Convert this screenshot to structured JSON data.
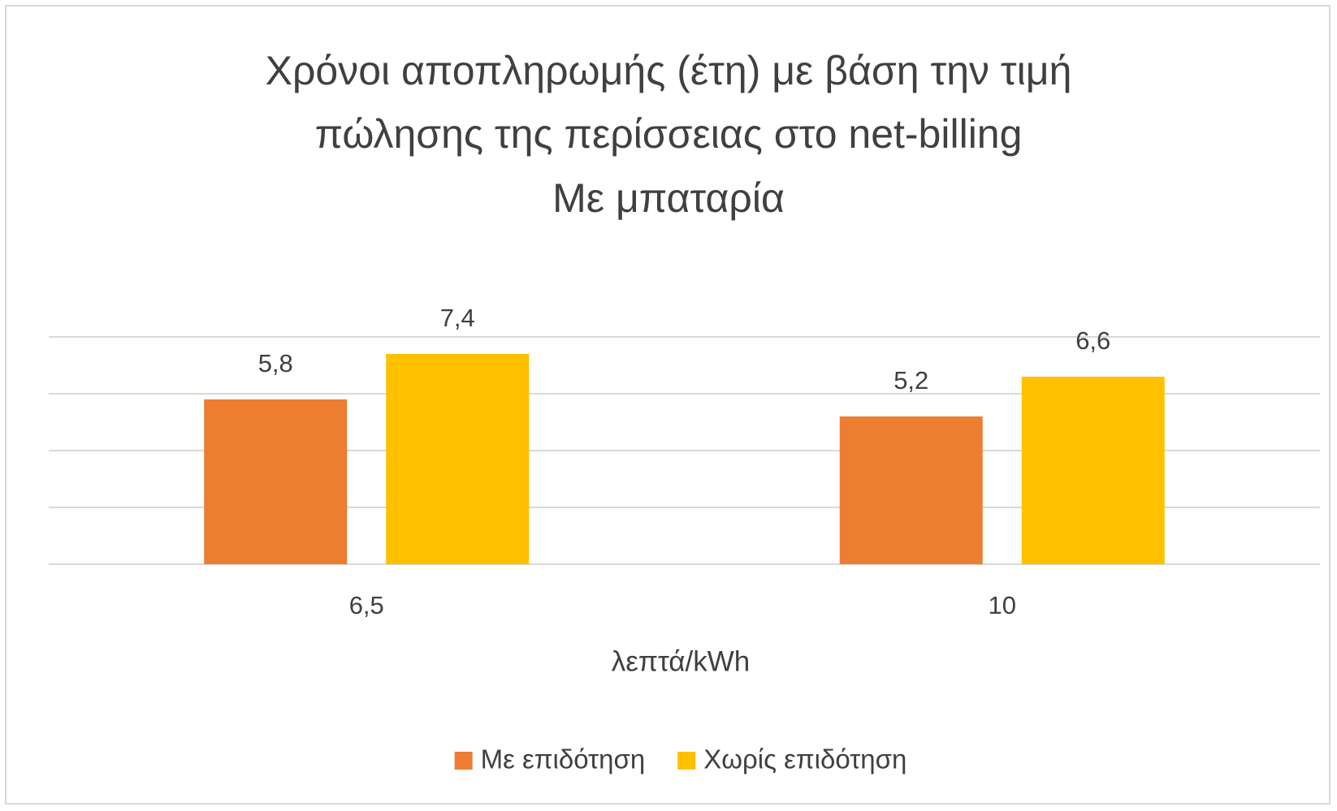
{
  "chart_data": {
    "type": "bar",
    "title": "Χρόνοι αποπληρωμής (έτη) με βάση την τιμή πώλησης της περίσσειας στο net-billing",
    "subtitle": "Με μπαταρία",
    "x_label": "λεπτά/kWh",
    "categories": [
      "6,5",
      "10"
    ],
    "series": [
      {
        "name": "Με επιδότηση",
        "color": "#ED7D31",
        "values": [
          5.8,
          5.2
        ],
        "value_labels": [
          "5,8",
          "5,2"
        ]
      },
      {
        "name": "Χωρίς επιδότηση",
        "color": "#FFC000",
        "values": [
          7.4,
          6.6
        ],
        "value_labels": [
          "7,4",
          "6,6"
        ]
      }
    ],
    "ylim": [
      0,
      8
    ],
    "yticks": [
      0,
      2,
      4,
      6,
      8
    ],
    "grid": true,
    "legend": "bottom"
  }
}
